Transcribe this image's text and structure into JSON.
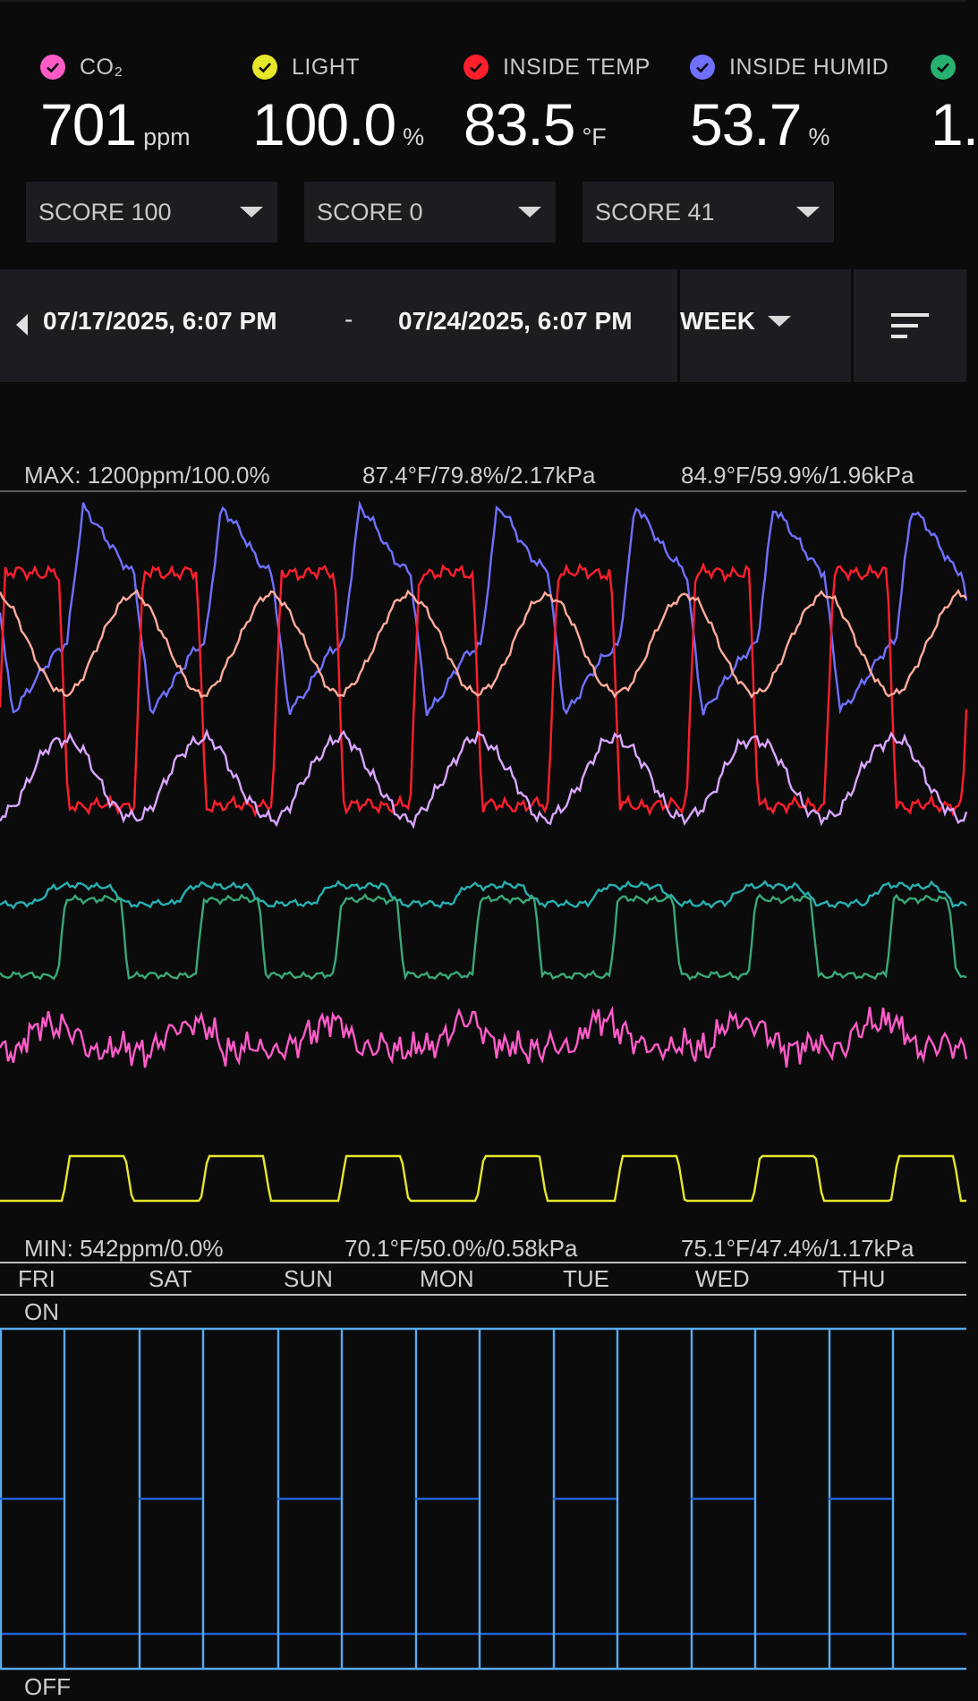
{
  "metrics": [
    {
      "label": "CO₂",
      "value": "701",
      "unit": "ppm",
      "color": "#ff5cc8",
      "icon": "check-circle-icon"
    },
    {
      "label": "LIGHT",
      "value": "100.0",
      "unit": "%",
      "color": "#e6e62a",
      "icon": "check-circle-icon"
    },
    {
      "label": "INSIDE TEMP",
      "value": "83.5",
      "unit": "°F",
      "color": "#ff1f2d",
      "icon": "check-circle-icon"
    },
    {
      "label": "INSIDE HUMID",
      "value": "53.7",
      "unit": "%",
      "color": "#7070ff",
      "icon": "check-circle-icon"
    },
    {
      "label": "",
      "value": "1.",
      "unit": "",
      "color": "#28b070",
      "icon": "check-circle-icon"
    }
  ],
  "scores": [
    {
      "label": "SCORE 100"
    },
    {
      "label": "SCORE 0"
    },
    {
      "label": "SCORE 41"
    }
  ],
  "range": {
    "start": "07/17/2025, 6:07 PM",
    "separator": "-",
    "end": "07/24/2025, 6:07 PM",
    "period": "WEEK"
  },
  "chart": {
    "max_labels": [
      "MAX: 1200ppm/100.0%",
      "87.4°F/79.8%/2.17kPa",
      "84.9°F/59.9%/1.96kPa"
    ],
    "min_labels": [
      "MIN: 542ppm/0.0%",
      "70.1°F/50.0%/0.58kPa",
      "75.1°F/47.4%/1.17kPa"
    ],
    "days": [
      "FRI",
      "SAT",
      "SUN",
      "MON",
      "TUE",
      "WED",
      "THU"
    ],
    "on_label": "ON",
    "off_label": "OFF",
    "colors": {
      "co2": "#ff5cc8",
      "light": "#e6e62a",
      "inside_temp": "#ff1f2d",
      "inside_humid": "#7070ff",
      "outside_temp": "#ffab9a",
      "outside_humid": "#d9a6ff",
      "vpd_a": "#28b0b0",
      "vpd_b": "#3aa878",
      "device_on": "#5aaaf0",
      "device_mid": "#2060d8"
    }
  }
}
